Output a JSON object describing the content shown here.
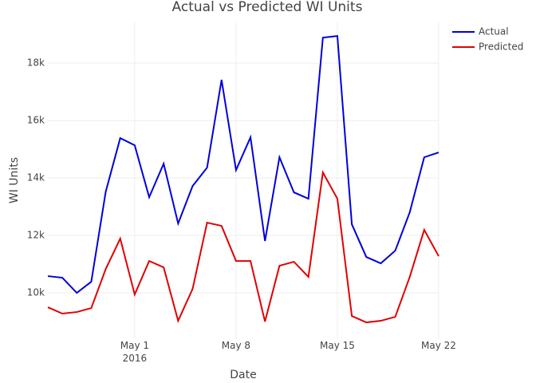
{
  "chart_data": {
    "type": "line",
    "title": "Actual vs Predicted WI Units",
    "x_label": "Date",
    "y_label": "WI Units",
    "x": [
      "2016-04-25",
      "2016-04-26",
      "2016-04-27",
      "2016-04-28",
      "2016-04-29",
      "2016-04-30",
      "2016-05-01",
      "2016-05-02",
      "2016-05-03",
      "2016-05-04",
      "2016-05-05",
      "2016-05-06",
      "2016-05-07",
      "2016-05-08",
      "2016-05-09",
      "2016-05-10",
      "2016-05-11",
      "2016-05-12",
      "2016-05-13",
      "2016-05-14",
      "2016-05-15",
      "2016-05-16",
      "2016-05-17",
      "2016-05-18",
      "2016-05-19",
      "2016-05-20",
      "2016-05-21",
      "2016-05-22"
    ],
    "series": [
      {
        "name": "Actual",
        "color": "#0000dd",
        "values": [
          10583,
          10528,
          10000,
          10389,
          13528,
          15389,
          15139,
          13333,
          14500,
          12417,
          13722,
          14361,
          17417,
          14278,
          15417,
          11806,
          14722,
          13500,
          13278,
          18889,
          18944,
          12389,
          11250,
          11028,
          11472,
          12806,
          14722,
          14889
        ]
      },
      {
        "name": "Predicted",
        "color": "#e00000",
        "values": [
          9500,
          9278,
          9333,
          9472,
          10833,
          11889,
          9944,
          11111,
          10889,
          9028,
          10139,
          12444,
          12333,
          11111,
          11111,
          9000,
          10944,
          11083,
          10556,
          14194,
          13278,
          9194,
          8972,
          9028,
          9167,
          10556,
          12194,
          11278
        ]
      }
    ],
    "xlim": [
      "2016-04-25",
      "2016-05-22"
    ],
    "xticks": [
      {
        "value": "2016-05-01",
        "label": "May 1\n2016"
      },
      {
        "value": "2016-05-08",
        "label": "May 8"
      },
      {
        "value": "2016-05-15",
        "label": "May 15"
      },
      {
        "value": "2016-05-22",
        "label": "May 22"
      }
    ],
    "ylim": [
      8390,
      19420
    ],
    "yticks": [
      {
        "value": 10000,
        "label": "10k"
      },
      {
        "value": 12000,
        "label": "12k"
      },
      {
        "value": 14000,
        "label": "14k"
      },
      {
        "value": 16000,
        "label": "16k"
      },
      {
        "value": 18000,
        "label": "18k"
      }
    ],
    "grid": true,
    "legend": "top-right"
  }
}
